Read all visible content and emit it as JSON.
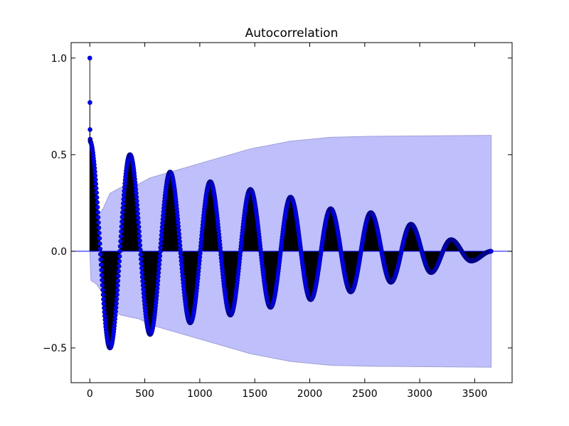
{
  "chart_data": {
    "type": "stem",
    "title": "Autocorrelation",
    "xlabel": "",
    "ylabel": "",
    "xlim": [
      -170,
      3840
    ],
    "ylim": [
      -0.68,
      1.08
    ],
    "xticks": [
      0,
      500,
      1000,
      1500,
      2000,
      2500,
      3000,
      3500
    ],
    "xtick_labels": [
      "0",
      "500",
      "1000",
      "1500",
      "2000",
      "2500",
      "3000",
      "3500"
    ],
    "yticks": [
      -0.5,
      0.0,
      0.5,
      1.0
    ],
    "ytick_labels": [
      "−0.5",
      "0.0",
      "0.5",
      "1.0"
    ],
    "n_lags": 3650,
    "period_lags": 365,
    "initial_values": [
      1.0,
      0.77,
      0.63,
      0.58,
      0.57
    ],
    "peaks": [
      {
        "lag": 0,
        "value": 1.0
      },
      {
        "lag": 183,
        "value": -0.5
      },
      {
        "lag": 365,
        "value": 0.5
      },
      {
        "lag": 548,
        "value": -0.43
      },
      {
        "lag": 730,
        "value": 0.41
      },
      {
        "lag": 913,
        "value": -0.37
      },
      {
        "lag": 1095,
        "value": 0.36
      },
      {
        "lag": 1278,
        "value": -0.33
      },
      {
        "lag": 1460,
        "value": 0.32
      },
      {
        "lag": 1643,
        "value": -0.29
      },
      {
        "lag": 1825,
        "value": 0.28
      },
      {
        "lag": 2008,
        "value": -0.25
      },
      {
        "lag": 2190,
        "value": 0.22
      },
      {
        "lag": 2373,
        "value": -0.21
      },
      {
        "lag": 2555,
        "value": 0.2
      },
      {
        "lag": 2738,
        "value": -0.16
      },
      {
        "lag": 2920,
        "value": 0.14
      },
      {
        "lag": 3103,
        "value": -0.11
      },
      {
        "lag": 3285,
        "value": 0.06
      },
      {
        "lag": 3468,
        "value": -0.05
      },
      {
        "lag": 3650,
        "value": 0.0
      }
    ],
    "confidence_band": [
      {
        "lag": 0,
        "half_width": 0.0
      },
      {
        "lag": 10,
        "half_width": 0.15
      },
      {
        "lag": 60,
        "half_width": 0.17
      },
      {
        "lag": 120,
        "half_width": 0.22
      },
      {
        "lag": 183,
        "half_width": 0.3
      },
      {
        "lag": 280,
        "half_width": 0.33
      },
      {
        "lag": 365,
        "half_width": 0.34
      },
      {
        "lag": 450,
        "half_width": 0.35
      },
      {
        "lag": 548,
        "half_width": 0.38
      },
      {
        "lag": 730,
        "half_width": 0.41
      },
      {
        "lag": 913,
        "half_width": 0.44
      },
      {
        "lag": 1095,
        "half_width": 0.47
      },
      {
        "lag": 1278,
        "half_width": 0.5
      },
      {
        "lag": 1460,
        "half_width": 0.53
      },
      {
        "lag": 1643,
        "half_width": 0.55
      },
      {
        "lag": 1825,
        "half_width": 0.57
      },
      {
        "lag": 2008,
        "half_width": 0.58
      },
      {
        "lag": 2190,
        "half_width": 0.59
      },
      {
        "lag": 2555,
        "half_width": 0.595
      },
      {
        "lag": 3000,
        "half_width": 0.597
      },
      {
        "lag": 3650,
        "half_width": 0.6
      }
    ],
    "grid": false,
    "legend": false,
    "colors": {
      "marker": "#0000ff",
      "marker_edge": "#000080",
      "stem": "#000000",
      "band_fill": "#bfbffb",
      "band_edge": "#a0a0d8",
      "zero_line": "#0000ff",
      "axes": "#000000"
    }
  }
}
